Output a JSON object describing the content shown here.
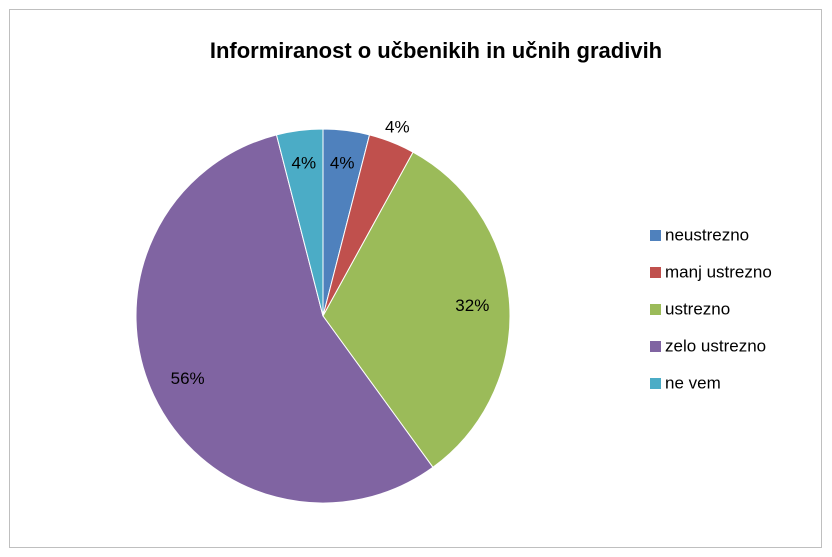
{
  "chart_data": {
    "type": "pie",
    "title": "Informiranost o učbenikih in učnih gradivih",
    "categories": [
      "neustrezno",
      "manj ustrezno",
      "ustrezno",
      "zelo ustrezno",
      "ne vem"
    ],
    "values": [
      4,
      4,
      32,
      56,
      4
    ],
    "value_labels": [
      "4%",
      "4%",
      "32%",
      "56%",
      "4%"
    ],
    "colors": [
      "#4f81bd",
      "#c0504d",
      "#9bbb59",
      "#8064a2",
      "#4bacc6"
    ],
    "legend": "right"
  }
}
